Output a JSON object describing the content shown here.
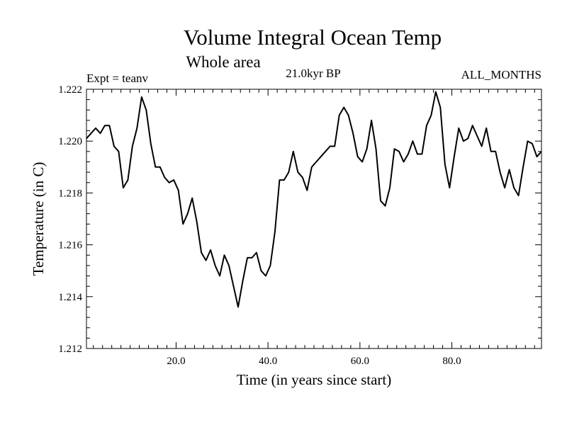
{
  "chart_data": {
    "type": "line",
    "title": "Volume Integral Ocean Temp",
    "subtitle": "Whole area",
    "period": "21.0kyr BP",
    "experiment": "Expt = teanv",
    "months": "ALL_MONTHS",
    "xlabel": "Time (in years since start)",
    "ylabel": "Temperature (in C)",
    "xlim": [
      0.5,
      99.5
    ],
    "ylim": [
      1.212,
      1.222
    ],
    "xticks": [
      20,
      40,
      60,
      80
    ],
    "xtick_labels": [
      "20.0",
      "40.0",
      "60.0",
      "80.0"
    ],
    "yticks": [
      1.212,
      1.214,
      1.216,
      1.218,
      1.22,
      1.222
    ],
    "ytick_labels": [
      "1.212",
      "1.214",
      "1.216",
      "1.218",
      "1.220",
      "1.222"
    ],
    "line_color": "#000000",
    "series": [
      {
        "name": "Volume Integral Ocean Temp",
        "x": [
          0.5,
          1.5,
          2.5,
          3.5,
          4.5,
          5.5,
          6.5,
          7.5,
          8.5,
          9.5,
          10.5,
          11.5,
          12.5,
          13.5,
          14.5,
          15.5,
          16.5,
          17.5,
          18.5,
          19.5,
          20.5,
          21.5,
          22.5,
          23.5,
          24.5,
          25.5,
          26.5,
          27.5,
          28.5,
          29.5,
          30.5,
          31.5,
          32.5,
          33.5,
          34.5,
          35.5,
          36.5,
          37.5,
          38.5,
          39.5,
          40.5,
          41.5,
          42.5,
          43.5,
          44.5,
          45.5,
          46.5,
          47.5,
          48.5,
          49.5,
          50.5,
          51.5,
          52.5,
          53.5,
          54.5,
          55.5,
          56.5,
          57.5,
          58.5,
          59.5,
          60.5,
          61.5,
          62.5,
          63.5,
          64.5,
          65.5,
          66.5,
          67.5,
          68.5,
          69.5,
          70.5,
          71.5,
          72.5,
          73.5,
          74.5,
          75.5,
          76.5,
          77.5,
          78.5,
          79.5,
          80.5,
          81.5,
          82.5,
          83.5,
          84.5,
          85.5,
          86.5,
          87.5,
          88.5,
          89.5,
          90.5,
          91.5,
          92.5,
          93.5,
          94.5,
          95.5,
          96.5,
          97.5,
          98.5,
          99.5
        ],
        "values": [
          1.2201,
          1.2203,
          1.2205,
          1.2203,
          1.2206,
          1.2206,
          1.2198,
          1.2196,
          1.2182,
          1.2185,
          1.2198,
          1.2205,
          1.2217,
          1.2212,
          1.2199,
          1.219,
          1.219,
          1.2186,
          1.2184,
          1.2185,
          1.2181,
          1.2168,
          1.2172,
          1.2178,
          1.2169,
          1.2157,
          1.2154,
          1.2158,
          1.2152,
          1.2148,
          1.2156,
          1.2152,
          1.2144,
          1.2136,
          1.2146,
          1.2155,
          1.2155,
          1.2157,
          1.215,
          1.2148,
          1.2152,
          1.2165,
          1.2185,
          1.2185,
          1.2188,
          1.2196,
          1.2188,
          1.2186,
          1.2181,
          1.219,
          1.2192,
          1.2194,
          1.2196,
          1.2198,
          1.2198,
          1.221,
          1.2213,
          1.221,
          1.2203,
          1.2194,
          1.2192,
          1.2197,
          1.2208,
          1.2197,
          1.2177,
          1.2175,
          1.2182,
          1.2197,
          1.2196,
          1.2192,
          1.2195,
          1.22,
          1.2195,
          1.2195,
          1.2206,
          1.221,
          1.2219,
          1.2213,
          1.2191,
          1.2182,
          1.2194,
          1.2205,
          1.22,
          1.2201,
          1.2206,
          1.2202,
          1.2198,
          1.2205,
          1.2196,
          1.2196,
          1.2188,
          1.2182,
          1.2189,
          1.2182,
          1.2179,
          1.219,
          1.22,
          1.2199,
          1.2194,
          1.2196
        ]
      }
    ]
  }
}
